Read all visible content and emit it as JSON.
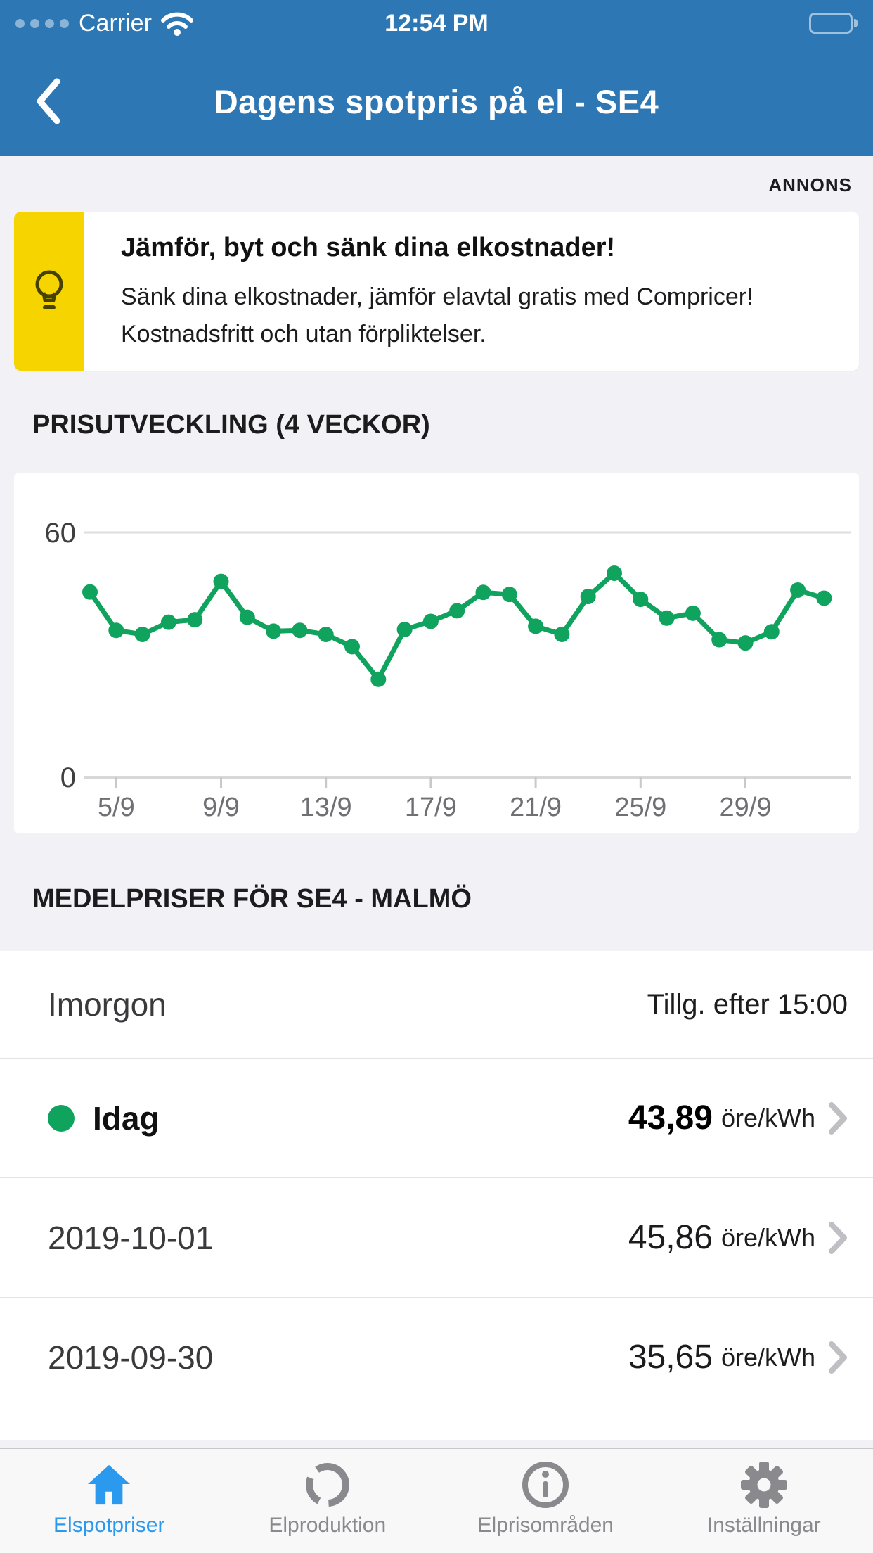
{
  "colors": {
    "header_blue": "#2d77b5",
    "accent_green": "#10a35e",
    "ad_yellow": "#f5d400",
    "tab_active_blue": "#2b99ee",
    "tab_inactive_gray": "#8a8a8e",
    "page_background": "#f2f2f6"
  },
  "status_bar": {
    "carrier": "Carrier",
    "time": "12:54 PM",
    "battery_level": "full",
    "signal_dots": 4
  },
  "nav": {
    "title": "Dagens spotpris på el - SE4",
    "back_icon": "chevron-left-icon"
  },
  "ad": {
    "label": "ANNONS",
    "icon": "lightbulb-icon",
    "title": "Jämför, byt och sänk dina elkostnader!",
    "body_lines": [
      "Sänk dina elkostnader, jämför elavtal gratis med Compricer!",
      "Kostnadsfritt och utan förpliktelser."
    ]
  },
  "sections": {
    "chart_title": "PRISUTVECKLING (4 VECKOR)",
    "list_title": "MEDELPRISER FÖR SE4 - MALMÖ"
  },
  "chart_data": {
    "type": "line",
    "title": "PRISUTVECKLING (4 VECKOR)",
    "unit": "öre/kWh",
    "x": [
      "4/9",
      "5/9",
      "6/9",
      "7/9",
      "8/9",
      "9/9",
      "10/9",
      "11/9",
      "12/9",
      "13/9",
      "14/9",
      "15/9",
      "16/9",
      "17/9",
      "18/9",
      "19/9",
      "20/9",
      "21/9",
      "22/9",
      "23/9",
      "24/9",
      "25/9",
      "26/9",
      "27/9",
      "28/9",
      "29/9",
      "30/9",
      "1/10",
      "2/10"
    ],
    "values": [
      45.4,
      36,
      35,
      38,
      38.6,
      48,
      39.2,
      35.8,
      36,
      35,
      32,
      24,
      36.2,
      38.2,
      40.8,
      45.3,
      44.8,
      37,
      35,
      44.3,
      50,
      43.6,
      39,
      40.2,
      33.7,
      32.9,
      35.65,
      45.86,
      43.89
    ],
    "x_tick_labels": [
      "5/9",
      "9/9",
      "13/9",
      "17/9",
      "21/9",
      "25/9",
      "29/9"
    ],
    "x_tick_indices": [
      1,
      5,
      9,
      13,
      17,
      21,
      25
    ],
    "y_tick_top": "60",
    "y_tick_bottom": "0",
    "ylim": [
      0,
      60
    ],
    "grid": "top and baseline horizontal lines only",
    "legend": "none",
    "line_color": "#10a35e"
  },
  "list": {
    "rows": [
      {
        "label": "Imorgon",
        "note": "Tillg. efter 15:00",
        "today": false,
        "chevron": false
      },
      {
        "label": "Idag",
        "price": "43,89",
        "unit": "öre/kWh",
        "today": true,
        "chevron": true
      },
      {
        "label": "2019-10-01",
        "price": "45,86",
        "unit": "öre/kWh",
        "today": false,
        "chevron": true
      },
      {
        "label": "2019-09-30",
        "price": "35,65",
        "unit": "öre/kWh",
        "today": false,
        "chevron": true
      }
    ]
  },
  "tab_bar": {
    "tabs": [
      {
        "id": "elspotpriser",
        "label": "Elspotpriser",
        "icon": "home-icon",
        "active": true
      },
      {
        "id": "elproduktion",
        "label": "Elproduktion",
        "icon": "donut-chart-icon",
        "active": false
      },
      {
        "id": "elprisomraden",
        "label": "Elprisområden",
        "icon": "info-circle-icon",
        "active": false
      },
      {
        "id": "installningar",
        "label": "Inställningar",
        "icon": "gear-icon",
        "active": false
      }
    ]
  }
}
